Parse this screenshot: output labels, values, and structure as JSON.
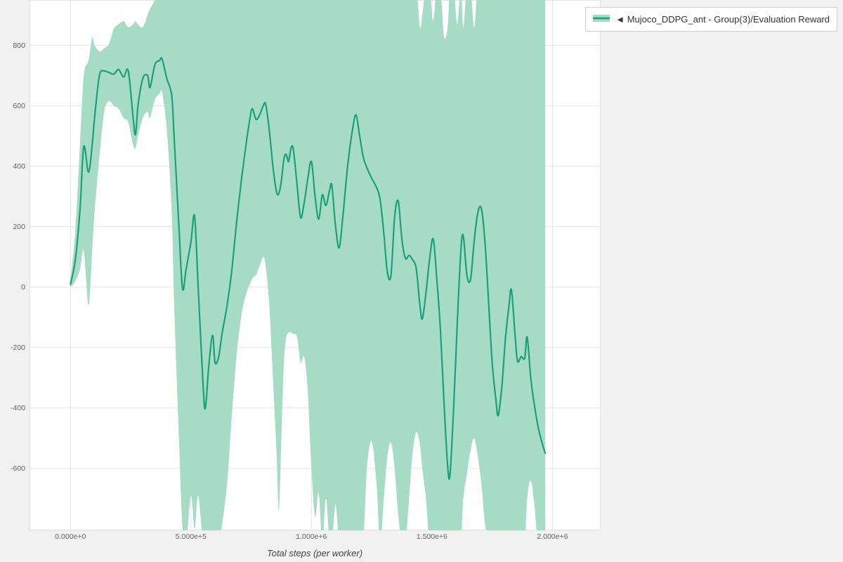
{
  "page": {
    "background": "#f1f1f2"
  },
  "legend": {
    "label": "◄ Mujoco_DDPG_ant - Group(3)/Evaluation Reward"
  },
  "axes": {
    "x_title": "Total steps (per worker)"
  },
  "chart_data": {
    "type": "line",
    "title": "",
    "xlabel": "Total steps (per worker)",
    "ylabel": "",
    "grid": true,
    "legend_position": "top-right-outside",
    "xlim": [
      -170000,
      2200000
    ],
    "ylim": [
      -805,
      950
    ],
    "x_ticks": [
      {
        "value": 0,
        "label": "0.000e+0"
      },
      {
        "value": 500000,
        "label": "5.000e+5"
      },
      {
        "value": 1000000,
        "label": "1.000e+6"
      },
      {
        "value": 1500000,
        "label": "1.500e+6"
      },
      {
        "value": 2000000,
        "label": "2.000e+6"
      }
    ],
    "y_ticks": [
      800,
      600,
      400,
      200,
      0,
      -200,
      -400,
      -600
    ],
    "series": [
      {
        "name": "Mujoco_DDPG_ant - Group(3)/Evaluation Reward",
        "line_color": "#1aa179",
        "band_color": "#a6dbc5",
        "point_format": [
          "x_steps",
          "band_lower",
          "mean",
          "band_upper"
        ],
        "points": [
          [
            0,
            0,
            10,
            25
          ],
          [
            20000,
            20,
            90,
            190
          ],
          [
            40000,
            60,
            260,
            480
          ],
          [
            55000,
            120,
            465,
            700
          ],
          [
            75000,
            -60,
            380,
            750
          ],
          [
            90000,
            120,
            470,
            825
          ],
          [
            100000,
            250,
            560,
            800
          ],
          [
            120000,
            430,
            700,
            780
          ],
          [
            140000,
            580,
            715,
            790
          ],
          [
            160000,
            615,
            710,
            805
          ],
          [
            180000,
            600,
            705,
            855
          ],
          [
            200000,
            590,
            720,
            870
          ],
          [
            220000,
            560,
            695,
            880
          ],
          [
            240000,
            545,
            715,
            860
          ],
          [
            260000,
            470,
            560,
            870
          ],
          [
            270000,
            460,
            505,
            880
          ],
          [
            280000,
            500,
            600,
            870
          ],
          [
            300000,
            560,
            690,
            860
          ],
          [
            320000,
            580,
            700,
            900
          ],
          [
            330000,
            560,
            660,
            920
          ],
          [
            350000,
            620,
            735,
            950
          ],
          [
            370000,
            640,
            750,
            1000
          ],
          [
            380000,
            645,
            755,
            1000
          ],
          [
            400000,
            520,
            690,
            1000
          ],
          [
            420000,
            250,
            635,
            1000
          ],
          [
            430000,
            -50,
            500,
            1000
          ],
          [
            450000,
            -500,
            200,
            1000
          ],
          [
            465000,
            -800,
            -5,
            1000
          ],
          [
            480000,
            -850,
            60,
            1000
          ],
          [
            500000,
            -690,
            150,
            1000
          ],
          [
            515000,
            -800,
            235,
            1000
          ],
          [
            530000,
            -690,
            0,
            1000
          ],
          [
            550000,
            -850,
            -320,
            1000
          ],
          [
            560000,
            -850,
            -400,
            1000
          ],
          [
            575000,
            -850,
            -250,
            1000
          ],
          [
            590000,
            -850,
            -160,
            1000
          ],
          [
            600000,
            -850,
            -250,
            1000
          ],
          [
            615000,
            -850,
            -230,
            1000
          ],
          [
            630000,
            -780,
            -150,
            1000
          ],
          [
            650000,
            -650,
            -60,
            1000
          ],
          [
            670000,
            -420,
            60,
            1000
          ],
          [
            690000,
            -220,
            220,
            1000
          ],
          [
            710000,
            -90,
            360,
            1000
          ],
          [
            730000,
            -20,
            480,
            1000
          ],
          [
            745000,
            10,
            560,
            1000
          ],
          [
            755000,
            30,
            590,
            1000
          ],
          [
            770000,
            40,
            555,
            1000
          ],
          [
            785000,
            70,
            570,
            1000
          ],
          [
            800000,
            100,
            600,
            1000
          ],
          [
            810000,
            70,
            605,
            1000
          ],
          [
            825000,
            -60,
            520,
            1000
          ],
          [
            840000,
            -300,
            400,
            1000
          ],
          [
            855000,
            -550,
            315,
            1000
          ],
          [
            865000,
            -740,
            310,
            1000
          ],
          [
            875000,
            -500,
            350,
            1000
          ],
          [
            885000,
            -260,
            420,
            1000
          ],
          [
            895000,
            -170,
            440,
            1000
          ],
          [
            905000,
            -150,
            415,
            1000
          ],
          [
            915000,
            -150,
            460,
            1000
          ],
          [
            925000,
            -155,
            455,
            1000
          ],
          [
            940000,
            -165,
            340,
            1000
          ],
          [
            955000,
            -250,
            230,
            1000
          ],
          [
            970000,
            -230,
            280,
            1000
          ],
          [
            985000,
            -350,
            360,
            1000
          ],
          [
            1000000,
            -600,
            415,
            1000
          ],
          [
            1015000,
            -760,
            300,
            1000
          ],
          [
            1030000,
            -680,
            225,
            1000
          ],
          [
            1045000,
            -850,
            305,
            1000
          ],
          [
            1060000,
            -700,
            270,
            1000
          ],
          [
            1075000,
            -850,
            320,
            1000
          ],
          [
            1085000,
            -850,
            335,
            1000
          ],
          [
            1100000,
            -720,
            200,
            1000
          ],
          [
            1115000,
            -850,
            130,
            1000
          ],
          [
            1130000,
            -850,
            230,
            1000
          ],
          [
            1150000,
            -850,
            400,
            1000
          ],
          [
            1170000,
            -850,
            520,
            1000
          ],
          [
            1185000,
            -850,
            570,
            1000
          ],
          [
            1200000,
            -850,
            500,
            1000
          ],
          [
            1215000,
            -850,
            430,
            1000
          ],
          [
            1230000,
            -600,
            395,
            1000
          ],
          [
            1250000,
            -510,
            360,
            1000
          ],
          [
            1270000,
            -650,
            330,
            1000
          ],
          [
            1285000,
            -850,
            290,
            1000
          ],
          [
            1300000,
            -700,
            180,
            1000
          ],
          [
            1315000,
            -560,
            50,
            1000
          ],
          [
            1330000,
            -515,
            40,
            1000
          ],
          [
            1345000,
            -600,
            230,
            1000
          ],
          [
            1360000,
            -750,
            285,
            1000
          ],
          [
            1375000,
            -850,
            160,
            1000
          ],
          [
            1390000,
            -850,
            95,
            1000
          ],
          [
            1405000,
            -700,
            105,
            1000
          ],
          [
            1420000,
            -550,
            90,
            1000
          ],
          [
            1435000,
            -480,
            60,
            1000
          ],
          [
            1450000,
            -520,
            -60,
            860
          ],
          [
            1460000,
            -600,
            -105,
            900
          ],
          [
            1475000,
            -700,
            -20,
            1000
          ],
          [
            1490000,
            -850,
            90,
            1000
          ],
          [
            1505000,
            -850,
            160,
            880
          ],
          [
            1520000,
            -850,
            30,
            1000
          ],
          [
            1535000,
            -850,
            -140,
            1000
          ],
          [
            1550000,
            -850,
            -380,
            830
          ],
          [
            1565000,
            -850,
            -590,
            860
          ],
          [
            1575000,
            -850,
            -620,
            1000
          ],
          [
            1590000,
            -850,
            -400,
            1000
          ],
          [
            1605000,
            -850,
            -120,
            870
          ],
          [
            1620000,
            -850,
            120,
            1000
          ],
          [
            1630000,
            -700,
            170,
            860
          ],
          [
            1645000,
            -620,
            40,
            1000
          ],
          [
            1660000,
            -540,
            25,
            1000
          ],
          [
            1675000,
            -500,
            150,
            860
          ],
          [
            1690000,
            -560,
            245,
            1000
          ],
          [
            1705000,
            -650,
            260,
            1000
          ],
          [
            1720000,
            -780,
            150,
            1000
          ],
          [
            1735000,
            -850,
            -50,
            1000
          ],
          [
            1750000,
            -850,
            -250,
            1000
          ],
          [
            1765000,
            -850,
            -370,
            1000
          ],
          [
            1775000,
            -850,
            -425,
            1000
          ],
          [
            1790000,
            -850,
            -330,
            1000
          ],
          [
            1805000,
            -850,
            -170,
            1000
          ],
          [
            1820000,
            -850,
            -60,
            1000
          ],
          [
            1830000,
            -850,
            -10,
            1000
          ],
          [
            1845000,
            -850,
            -160,
            1000
          ],
          [
            1855000,
            -850,
            -245,
            1000
          ],
          [
            1870000,
            -850,
            -230,
            1000
          ],
          [
            1885000,
            -850,
            -235,
            1000
          ],
          [
            1895000,
            -700,
            -165,
            1000
          ],
          [
            1910000,
            -640,
            -300,
            1000
          ],
          [
            1925000,
            -720,
            -390,
            1000
          ],
          [
            1940000,
            -850,
            -460,
            1000
          ],
          [
            1955000,
            -850,
            -510,
            1000
          ],
          [
            1970000,
            -850,
            -550,
            1000
          ]
        ]
      }
    ],
    "colors": {
      "grid": "#e5e5e5",
      "plot_border": "#e3e3e3",
      "tick_text": "#666666",
      "axis_title_text": "#444444"
    }
  }
}
